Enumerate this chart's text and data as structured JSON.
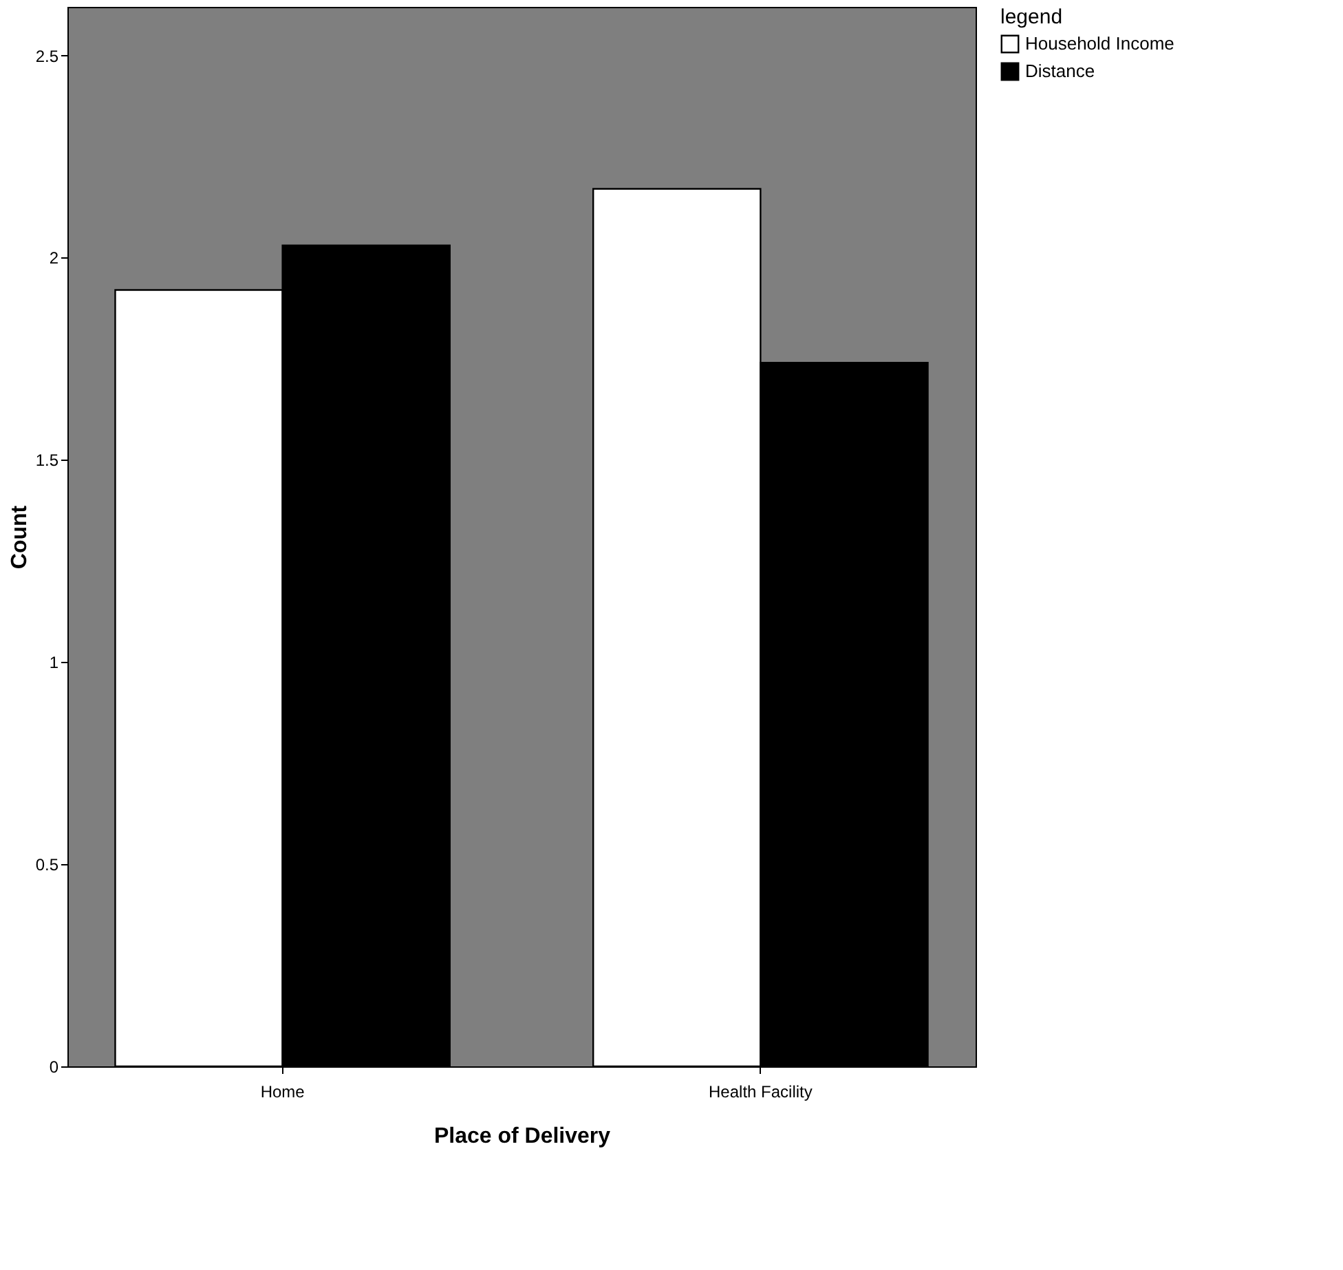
{
  "chart_data": {
    "type": "bar",
    "xlabel": "Place of Delivery",
    "ylabel": "Count",
    "legend_title": "legend",
    "categories": [
      "Home",
      "Health Facility"
    ],
    "series": [
      {
        "name": "Household Income",
        "color": "#ffffff",
        "values": [
          1.92,
          2.17
        ]
      },
      {
        "name": "Distance",
        "color": "#000000",
        "values": [
          2.03,
          1.74
        ]
      }
    ],
    "ylim": [
      0,
      2.62
    ],
    "yticks": [
      0,
      0.5,
      1,
      1.5,
      2,
      2.5
    ],
    "grid": false,
    "legend": "top right"
  }
}
